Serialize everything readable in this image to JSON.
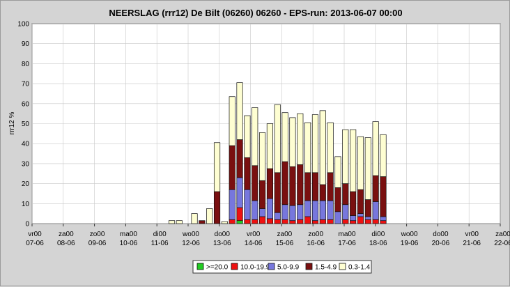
{
  "chart_data": {
    "type": "bar",
    "stacked": true,
    "title": "NEERSLAG (rrr12) De Bilt (06260) 06260 - EPS-run: 2013-06-07 00:00",
    "ylabel": "rrr12  %",
    "ylim": [
      0,
      100
    ],
    "yticks": [
      0,
      10,
      20,
      30,
      40,
      50,
      60,
      70,
      80,
      90,
      100
    ],
    "grid": true,
    "legend_position": "bottom",
    "x_tick_labels": [
      [
        "vr00",
        "07-06"
      ],
      [
        "za00",
        "08-06"
      ],
      [
        "zo00",
        "09-06"
      ],
      [
        "ma00",
        "10-06"
      ],
      [
        "di00",
        "11-06"
      ],
      [
        "wo00",
        "12-06"
      ],
      [
        "do00",
        "13-06"
      ],
      [
        "vr00",
        "14-06"
      ],
      [
        "za00",
        "15-06"
      ],
      [
        "zo00",
        "16-06"
      ],
      [
        "ma00",
        "17-06"
      ],
      [
        "di00",
        "18-06"
      ],
      [
        "wo00",
        "19-06"
      ],
      [
        "do00",
        "20-06"
      ],
      [
        "vr00",
        "21-06"
      ],
      [
        "za00",
        "22-06"
      ]
    ],
    "series": [
      {
        "name": ">=20.0",
        "color": "#22cc22",
        "values": [
          0,
          0,
          0,
          0,
          0,
          0,
          0,
          0,
          0,
          0,
          0,
          0,
          0,
          0,
          0,
          0,
          0,
          0,
          0,
          0,
          0,
          0,
          0,
          0,
          0,
          0,
          0,
          1.5,
          0,
          0,
          0,
          0,
          0,
          0,
          0,
          0,
          0,
          0,
          0,
          0,
          0,
          0,
          0,
          0,
          0,
          0,
          0,
          0,
          0,
          0,
          0,
          0,
          0,
          0,
          0,
          0,
          0,
          0,
          0,
          0,
          0,
          0
        ]
      },
      {
        "name": "10.0-19.9",
        "color": "#ee1111",
        "values": [
          0,
          0,
          0,
          0,
          0,
          0,
          0,
          0,
          0,
          0,
          0,
          0,
          0,
          0,
          0,
          0,
          0,
          0,
          0,
          0,
          0,
          0,
          0,
          0,
          0,
          0,
          2,
          6.5,
          2,
          2,
          3.5,
          2.5,
          2,
          2,
          1.5,
          2,
          3.5,
          1.5,
          2,
          2,
          0,
          2,
          1.5,
          3.5,
          2,
          2,
          1.5,
          0,
          0,
          0,
          0,
          0,
          0,
          0,
          0,
          0,
          0,
          0,
          0,
          0,
          0,
          0
        ]
      },
      {
        "name": "5.0-9.9",
        "color": "#7777dd",
        "values": [
          0,
          0,
          0,
          0,
          0,
          0,
          0,
          0,
          0,
          0,
          0,
          0,
          0,
          0,
          0,
          0,
          0,
          0,
          0,
          0,
          0,
          0,
          0,
          0,
          0,
          0,
          15,
          15,
          15,
          9.5,
          4,
          10,
          3.5,
          7.5,
          7.5,
          7.5,
          8,
          10,
          9.5,
          9.5,
          6,
          7.5,
          2.5,
          1.5,
          1.5,
          9,
          2,
          0,
          0,
          0,
          0,
          0,
          0,
          0,
          0,
          0,
          0,
          0,
          0,
          0,
          0,
          0
        ]
      },
      {
        "name": "1.5-4.9",
        "color": "#7a1010",
        "values": [
          0,
          0,
          0,
          0,
          0,
          0,
          0,
          0,
          0,
          0,
          0,
          0,
          0,
          0,
          0,
          0,
          0,
          0,
          0,
          0,
          0,
          0,
          1.5,
          0,
          16,
          0,
          22,
          19,
          16,
          17.5,
          14,
          15,
          20,
          21.5,
          19.5,
          20,
          14,
          14,
          8,
          14,
          12,
          10.5,
          12,
          12,
          8.5,
          13,
          20,
          0,
          0,
          0,
          0,
          0,
          0,
          0,
          0,
          0,
          0,
          0,
          0,
          0,
          0,
          0
        ]
      },
      {
        "name": "0.3-1.4",
        "color": "#fefed2",
        "values": [
          0,
          0,
          0,
          0,
          0,
          0,
          0,
          0,
          0,
          0,
          0,
          0,
          0,
          0,
          0,
          0,
          0,
          0,
          1.5,
          1.5,
          0,
          5,
          0,
          7.5,
          24.5,
          1,
          24.5,
          28.5,
          21,
          29,
          24,
          22.5,
          34,
          24.5,
          24.5,
          25.5,
          25,
          29,
          37,
          25,
          15.5,
          27,
          31,
          26.5,
          31,
          27,
          21,
          0,
          0,
          0,
          0,
          0,
          0,
          0,
          0,
          0,
          0,
          0,
          0,
          0,
          0,
          0
        ]
      }
    ],
    "bar_count": 62
  }
}
